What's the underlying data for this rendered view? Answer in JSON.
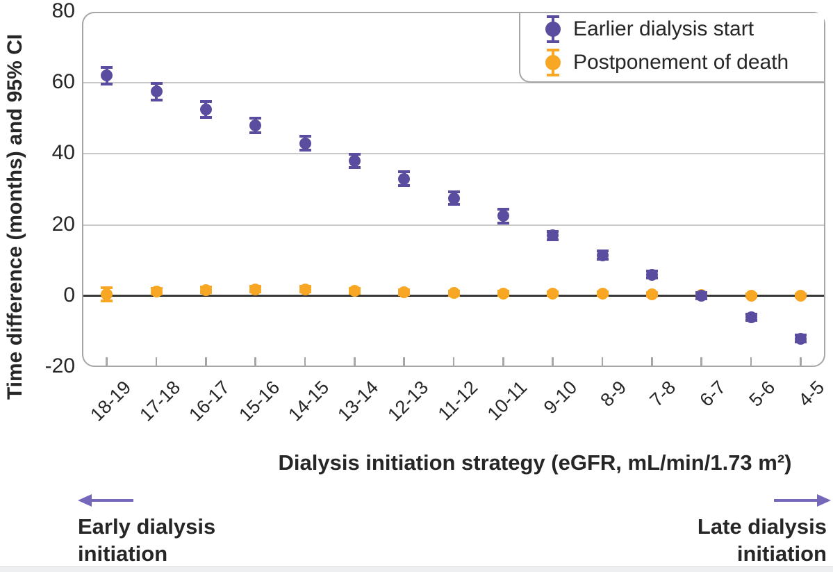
{
  "colors": {
    "purple_series": "#5a4d9f",
    "orange_series": "#f7a723",
    "arrow_purple": "#7568ba",
    "gridline": "#c9c9c9",
    "zero_line": "#373737",
    "frame": "#a6a6a6",
    "text": "#262626"
  },
  "annotations": {
    "left": {
      "line1": "Early dialysis",
      "line2": "initiation",
      "icon": "left-arrow"
    },
    "right": {
      "line1": "Late dialysis",
      "line2": "initiation",
      "icon": "right-arrow"
    }
  },
  "chart_data": {
    "type": "scatter",
    "title": "",
    "xlabel": "Dialysis initiation strategy (eGFR, mL/min/1.73 m²)",
    "ylabel": "Time difference (months) and 95% CI",
    "categories": [
      "18-19",
      "17-18",
      "16-17",
      "15-16",
      "14-15",
      "13-14",
      "12-13",
      "11-12",
      "10-11",
      "9-10",
      "8-9",
      "7-8",
      "6-7",
      "5-6",
      "4-5"
    ],
    "series": [
      {
        "name": "Earlier dialysis start",
        "color": "#5a4d9f",
        "values": [
          62,
          57.5,
          52.5,
          48,
          43,
          38,
          33,
          27.5,
          22.5,
          17,
          11.5,
          6,
          0,
          -6,
          -12
        ],
        "ci_half_width": [
          2.3,
          2.4,
          2.2,
          2.1,
          2.0,
          1.9,
          1.9,
          1.8,
          1.9,
          1.2,
          1.1,
          1.0,
          0.9,
          0.9,
          1.0
        ]
      },
      {
        "name": "Postponement of death",
        "color": "#f7a723",
        "values": [
          0.5,
          1.3,
          1.7,
          1.9,
          1.9,
          1.5,
          1.1,
          0.8,
          0.7,
          0.7,
          0.6,
          0.5,
          0.3,
          0.1,
          0.1
        ],
        "ci_half_width": [
          1.9,
          0.8,
          0.8,
          0.8,
          0.8,
          0.7,
          0.7,
          0.6,
          0.6,
          0.5,
          0.5,
          0.5,
          0.4,
          0.4,
          0.4
        ]
      }
    ],
    "ylim": [
      -20,
      80
    ],
    "yticks": [
      80,
      60,
      40,
      20,
      0,
      -20
    ],
    "gridlines": [
      60,
      40,
      20
    ],
    "baseline": 0,
    "grid": "horizontal",
    "legend_position": "top-right"
  }
}
